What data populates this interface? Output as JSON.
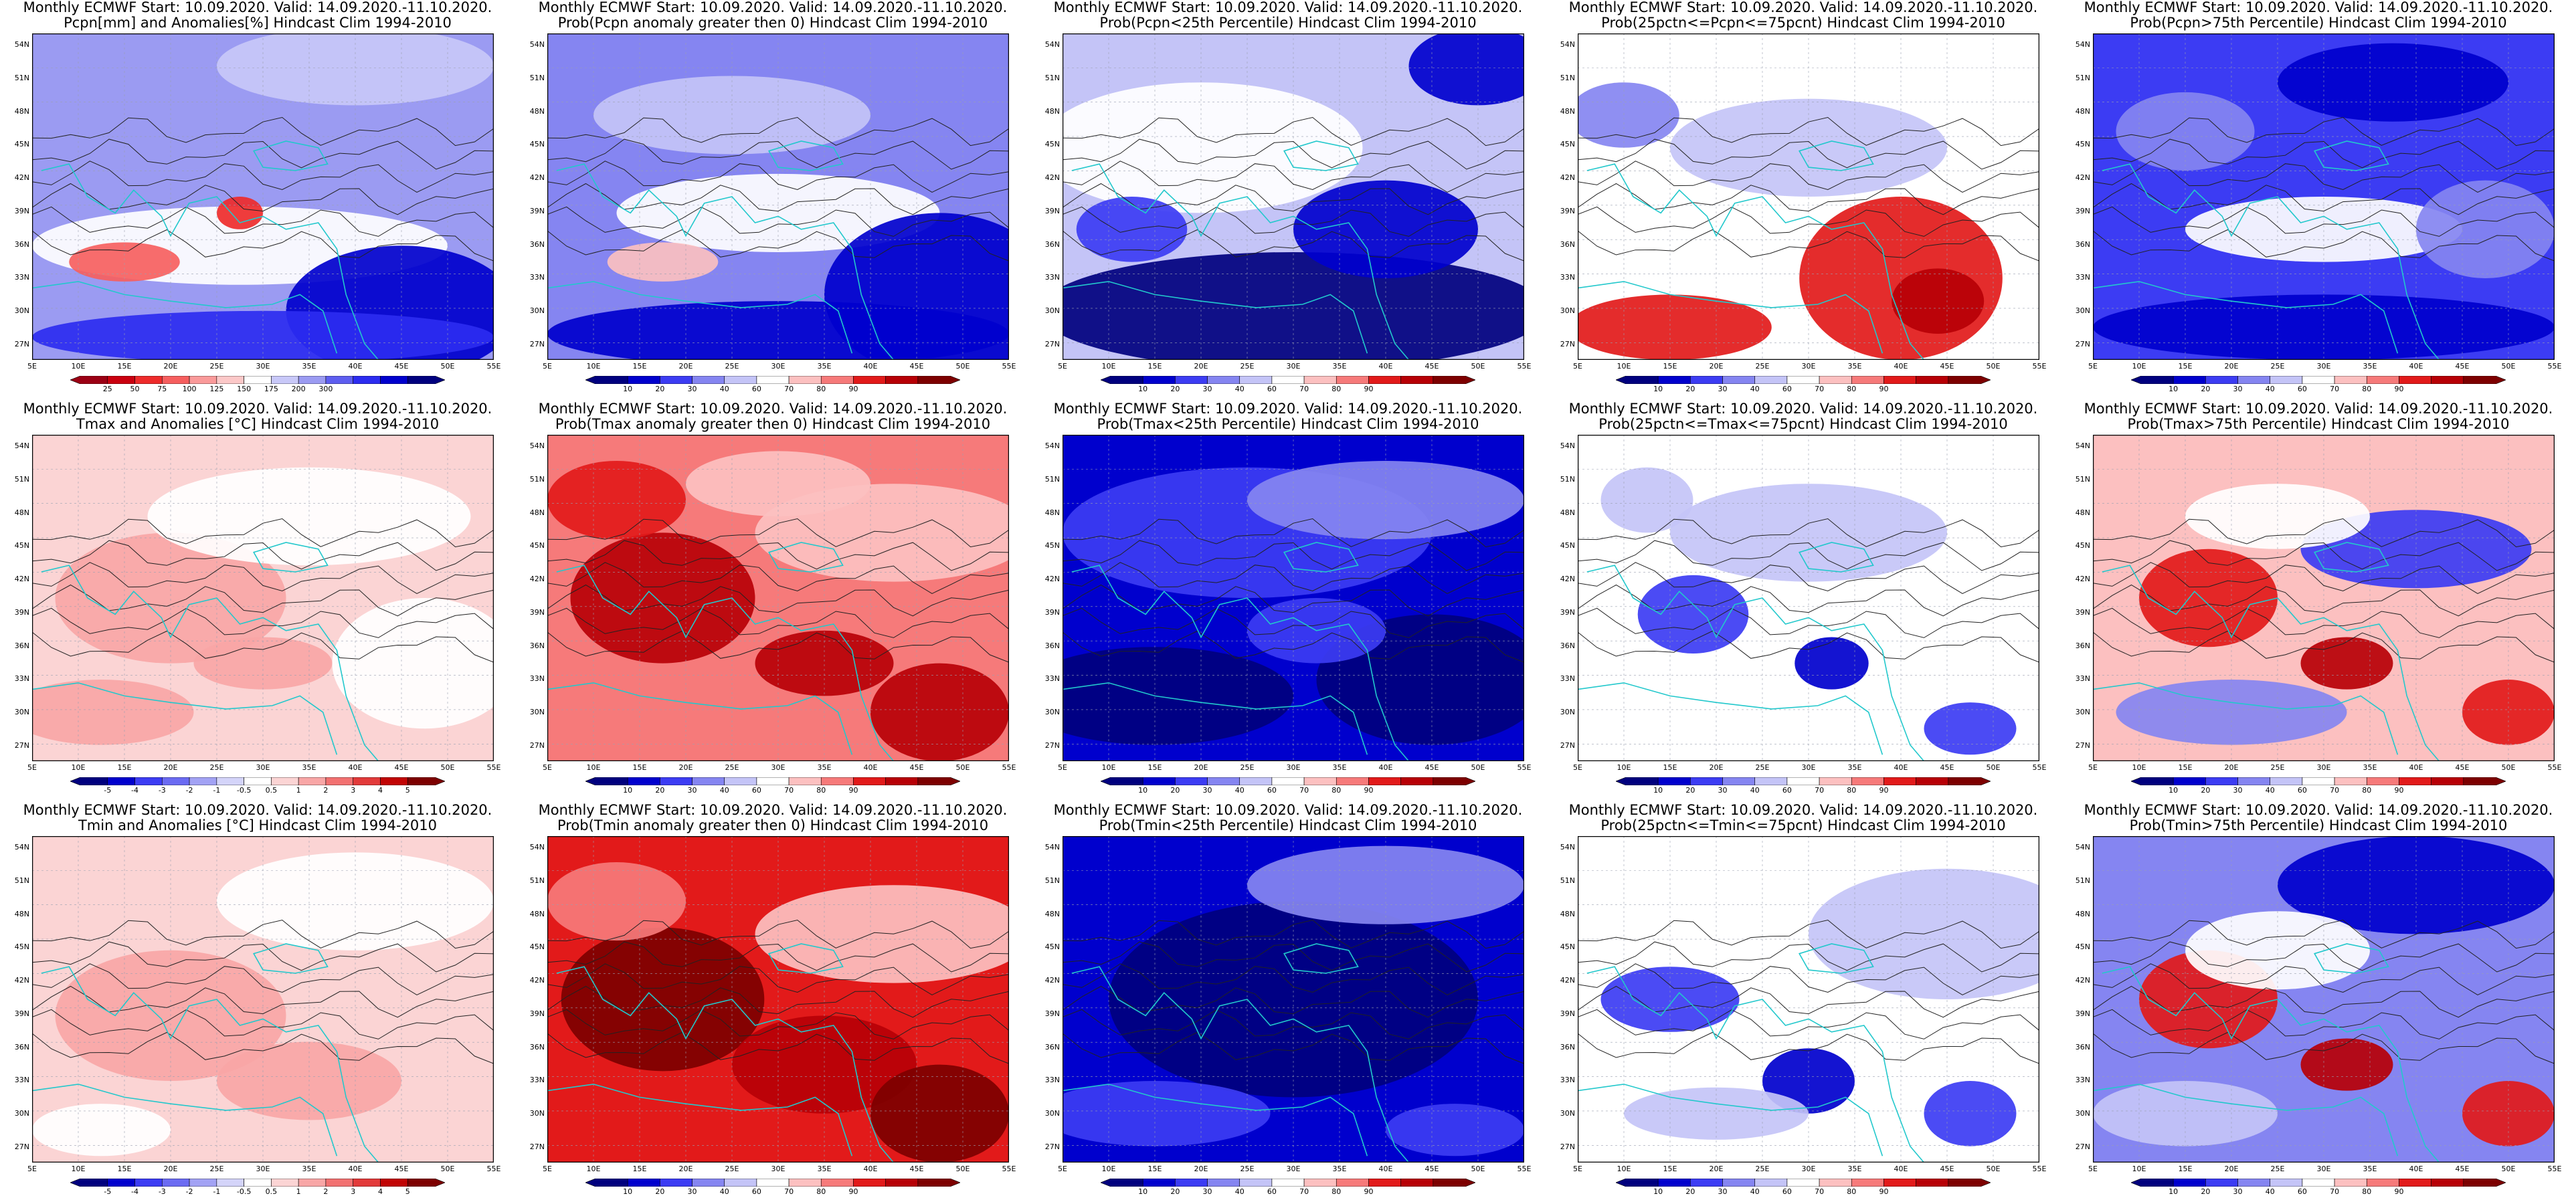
{
  "ylabels": [
    "54N",
    "51N",
    "48N",
    "45N",
    "42N",
    "39N",
    "36N",
    "33N",
    "30N",
    "27N"
  ],
  "xlabels": [
    "5E",
    "10E",
    "15E",
    "20E",
    "25E",
    "30E",
    "35E",
    "40E",
    "45E",
    "50E",
    "55E"
  ],
  "scales": {
    "pcpn_anom": {
      "ticks": [
        "25",
        "50",
        "75",
        "100",
        "125",
        "150",
        "175",
        "200",
        "300"
      ],
      "colors": [
        "#9b0014",
        "#ca000f",
        "#ee2b2b",
        "#f65f5f",
        "#fa9a9a",
        "#fcc8c8",
        "#ffffff",
        "#c8c8f8",
        "#9b9bf2",
        "#5e5ef0",
        "#2c2cf0",
        "#0000cd",
        "#00007e"
      ]
    },
    "prob": {
      "ticks": [
        "10",
        "20",
        "30",
        "40",
        "60",
        "70",
        "80",
        "90"
      ],
      "colors": [
        "#00007e",
        "#0000cd",
        "#3c3cf3",
        "#8585f1",
        "#c4c4f7",
        "#ffffff",
        "#fcc0c0",
        "#f67a7a",
        "#e21a1a",
        "#b70006",
        "#7d0000"
      ]
    },
    "temp_anom": {
      "ticks": [
        "-5",
        "-4",
        "-3",
        "-2",
        "-1",
        "-0.5",
        "0.5",
        "1",
        "2",
        "3",
        "4",
        "5"
      ],
      "colors": [
        "#00007e",
        "#0000cd",
        "#3c3cf3",
        "#6b6bf2",
        "#a2a2f4",
        "#d4d4f9",
        "#ffffff",
        "#fbd4d4",
        "#f8a6a6",
        "#f27171",
        "#e23a3a",
        "#c10404",
        "#7d0000"
      ]
    }
  },
  "panels": [
    {
      "id": "pcpn-anom",
      "title1": "Monthly ECMWF Start: 10.09.2020. Valid: 14.09.2020.-11.10.2020.",
      "title2": "Pcpn[mm] and Anomalies[%] Hindcast Clim 1994-2010",
      "scale": "pcpn_anom"
    },
    {
      "id": "pcpn-prob-pos",
      "title1": "Monthly ECMWF Start: 10.09.2020. Valid: 14.09.2020.-11.10.2020.",
      "title2": "Prob(Pcpn anomaly greater then 0) Hindcast Clim 1994-2010",
      "scale": "prob"
    },
    {
      "id": "pcpn-prob-lt25",
      "title1": "Monthly ECMWF Start: 10.09.2020. Valid: 14.09.2020.-11.10.2020.",
      "title2": "Prob(Pcpn<25th Percentile) Hindcast Clim 1994-2010",
      "scale": "prob"
    },
    {
      "id": "pcpn-prob-mid",
      "title1": "Monthly ECMWF Start: 10.09.2020. Valid: 14.09.2020.-11.10.2020.",
      "title2": "Prob(25pctn<=Pcpn<=75pcnt) Hindcast Clim 1994-2010",
      "scale": "prob"
    },
    {
      "id": "pcpn-prob-gt75",
      "title1": "Monthly ECMWF Start: 10.09.2020. Valid: 14.09.2020.-11.10.2020.",
      "title2": "Prob(Pcpn>75th Percentile) Hindcast Clim 1994-2010",
      "scale": "prob"
    },
    {
      "id": "tmax-anom",
      "title1": "Monthly ECMWF Start: 10.09.2020. Valid: 14.09.2020.-11.10.2020.",
      "title2": "Tmax and Anomalies [°C] Hindcast Clim 1994-2010",
      "scale": "temp_anom"
    },
    {
      "id": "tmax-prob-pos",
      "title1": "Monthly ECMWF Start: 10.09.2020. Valid: 14.09.2020.-11.10.2020.",
      "title2": "Prob(Tmax anomaly greater then 0) Hindcast Clim 1994-2010",
      "scale": "prob"
    },
    {
      "id": "tmax-prob-lt25",
      "title1": "Monthly ECMWF Start: 10.09.2020. Valid: 14.09.2020.-11.10.2020.",
      "title2": "Prob(Tmax<25th Percentile) Hindcast Clim 1994-2010",
      "scale": "prob"
    },
    {
      "id": "tmax-prob-mid",
      "title1": "Monthly ECMWF Start: 10.09.2020. Valid: 14.09.2020.-11.10.2020.",
      "title2": "Prob(25pctn<=Tmax<=75pcnt) Hindcast Clim 1994-2010",
      "scale": "prob"
    },
    {
      "id": "tmax-prob-gt75",
      "title1": "Monthly ECMWF Start: 10.09.2020. Valid: 14.09.2020.-11.10.2020.",
      "title2": "Prob(Tmax>75th Percentile) Hindcast Clim 1994-2010",
      "scale": "prob"
    },
    {
      "id": "tmin-anom",
      "title1": "Monthly ECMWF Start: 10.09.2020. Valid: 14.09.2020.-11.10.2020.",
      "title2": "Tmin and Anomalies [°C] Hindcast Clim 1994-2010",
      "scale": "temp_anom"
    },
    {
      "id": "tmin-prob-pos",
      "title1": "Monthly ECMWF Start: 10.09.2020. Valid: 14.09.2020.-11.10.2020.",
      "title2": "Prob(Tmin anomaly greater then 0) Hindcast Clim 1994-2010",
      "scale": "prob"
    },
    {
      "id": "tmin-prob-lt25",
      "title1": "Monthly ECMWF Start: 10.09.2020. Valid: 14.09.2020.-11.10.2020.",
      "title2": "Prob(Tmin<25th Percentile) Hindcast Clim 1994-2010",
      "scale": "prob"
    },
    {
      "id": "tmin-prob-mid",
      "title1": "Monthly ECMWF Start: 10.09.2020. Valid: 14.09.2020.-11.10.2020.",
      "title2": "Prob(25pctn<=Tmin<=75pcnt) Hindcast Clim 1994-2010",
      "scale": "prob"
    },
    {
      "id": "tmin-prob-gt75",
      "title1": "Monthly ECMWF Start: 10.09.2020. Valid: 14.09.2020.-11.10.2020.",
      "title2": "Prob(Tmin>75th Percentile) Hindcast Clim 1994-2010",
      "scale": "prob"
    }
  ]
}
